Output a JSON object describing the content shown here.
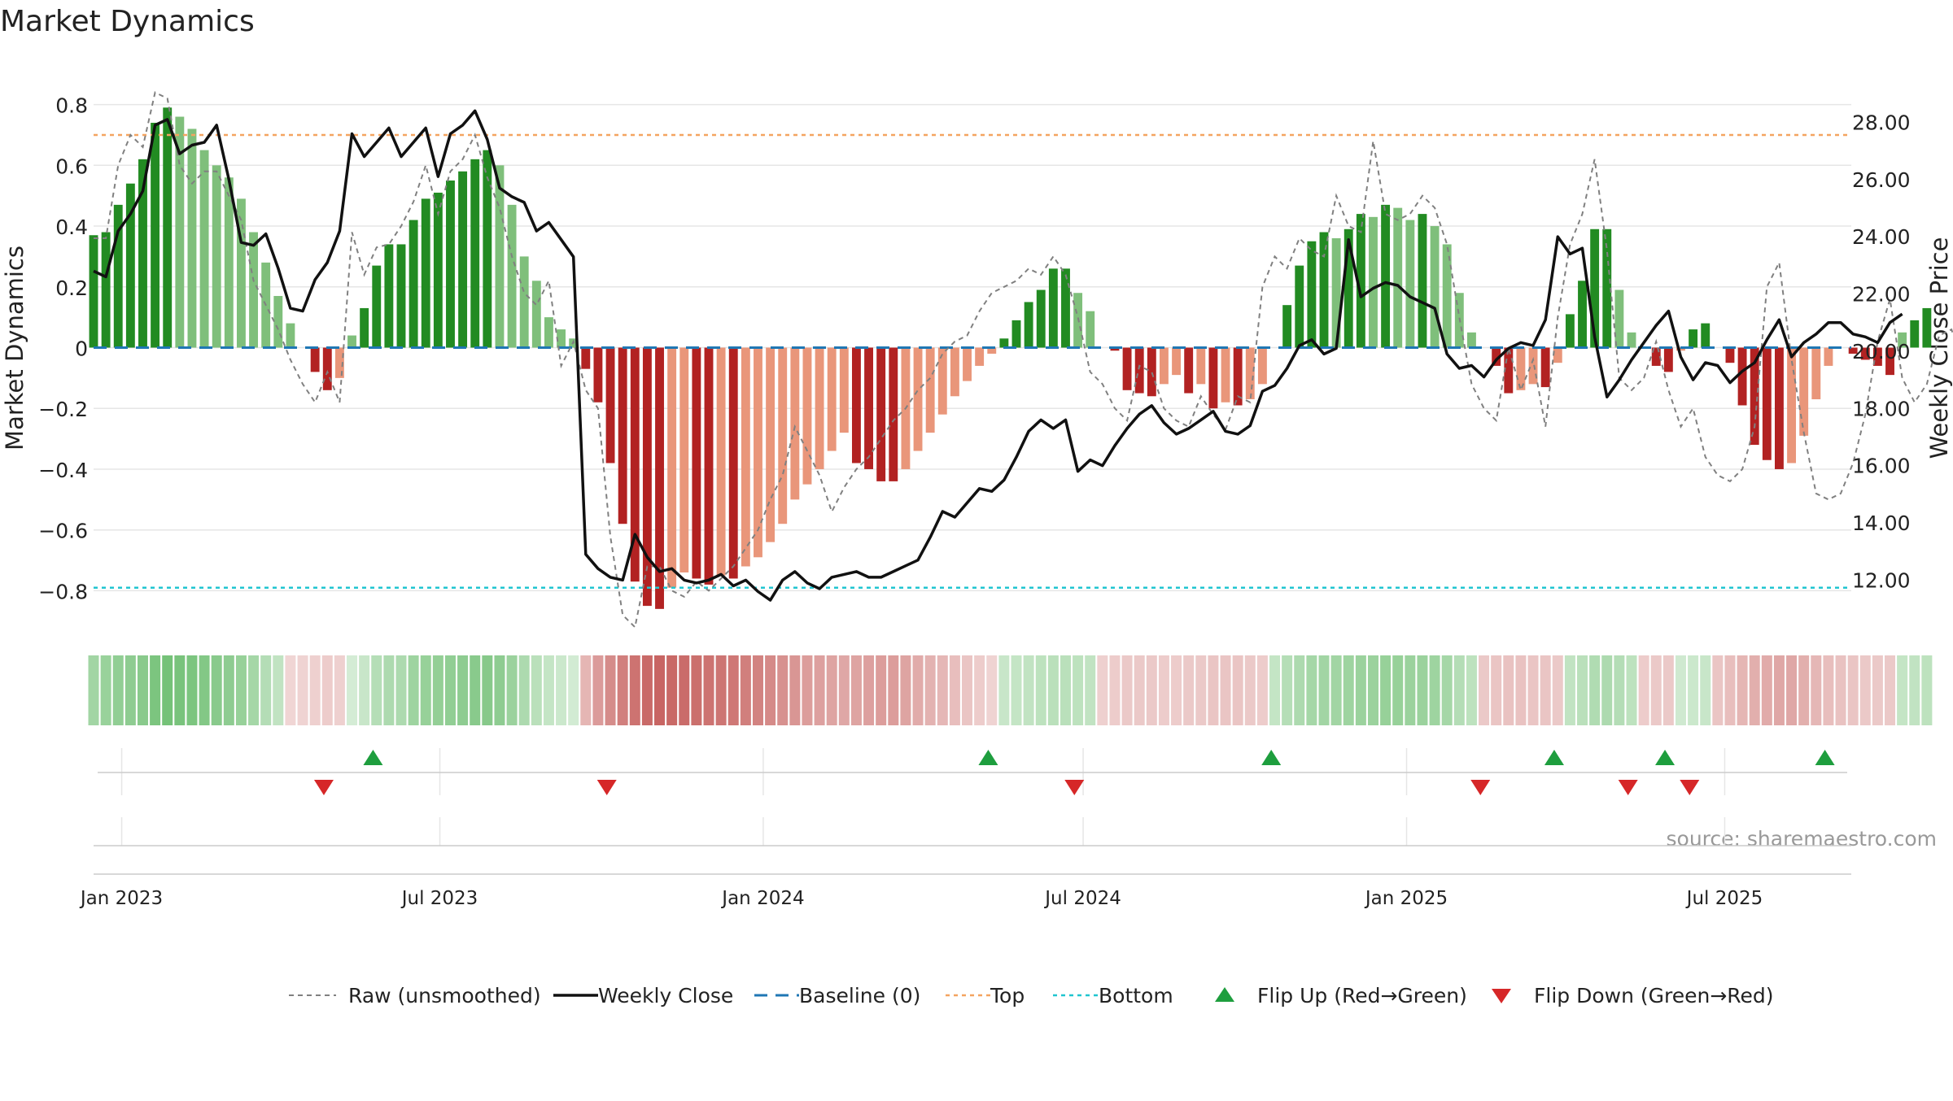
{
  "chart_data": {
    "type": "bar",
    "title": "Market Dynamics",
    "ylabel": "Market Dynamics",
    "y2label": "Weekly Close Price",
    "source": "source: sharemaestro.com",
    "ylim": [
      -0.93,
      0.93
    ],
    "y2lim": [
      10.25,
      30.0
    ],
    "yticks": [
      -0.8,
      -0.6,
      -0.4,
      -0.2,
      0,
      0.2,
      0.4,
      0.6,
      0.8
    ],
    "ytick_labels": [
      "−0.8",
      "−0.6",
      "−0.4",
      "−0.2",
      "0",
      "0.2",
      "0.4",
      "0.6",
      "0.8"
    ],
    "y2ticks": [
      12,
      14,
      16,
      18,
      20,
      22,
      24,
      26,
      28
    ],
    "y2tick_labels": [
      "12.00",
      "14.00",
      "16.00",
      "18.00",
      "20.00",
      "22.00",
      "24.00",
      "26.00",
      "28.00"
    ],
    "xlim": [
      "2022-12-16",
      "2025-09-11"
    ],
    "xticks": [
      "2023-01-01",
      "2023-07-01",
      "2024-01-01",
      "2024-07-01",
      "2025-01-01",
      "2025-07-01"
    ],
    "xtick_labels": [
      "Jan 2023",
      "Jul 2023",
      "Jan 2024",
      "Jul 2024",
      "Jan 2025",
      "Jul 2025"
    ],
    "grid": true,
    "legend_position": "bottom",
    "top_level": 0.7,
    "bottom_level": -0.79,
    "baseline": 0,
    "start_date": "2022-12-16",
    "bar_values": [
      0.37,
      0.38,
      0.47,
      0.54,
      0.62,
      0.74,
      0.79,
      0.76,
      0.72,
      0.65,
      0.6,
      0.56,
      0.49,
      0.38,
      0.28,
      0.17,
      0.08,
      0,
      -0.08,
      -0.14,
      -0.1,
      0.04,
      0.13,
      0.27,
      0.34,
      0.34,
      0.42,
      0.49,
      0.51,
      0.55,
      0.58,
      0.62,
      0.65,
      0.6,
      0.47,
      0.3,
      0.22,
      0.1,
      0.06,
      0.03,
      -0.07,
      -0.18,
      -0.38,
      -0.58,
      -0.77,
      -0.85,
      -0.86,
      -0.79,
      -0.74,
      -0.76,
      -0.78,
      -0.75,
      -0.76,
      -0.72,
      -0.69,
      -0.64,
      -0.58,
      -0.5,
      -0.45,
      -0.4,
      -0.34,
      -0.28,
      -0.38,
      -0.4,
      -0.44,
      -0.44,
      -0.4,
      -0.34,
      -0.28,
      -0.22,
      -0.16,
      -0.11,
      -0.06,
      -0.02,
      0.03,
      0.09,
      0.15,
      0.19,
      0.26,
      0.26,
      0.18,
      0.12,
      0,
      -0.01,
      -0.14,
      -0.15,
      -0.16,
      -0.12,
      -0.09,
      -0.15,
      -0.12,
      -0.2,
      -0.18,
      -0.19,
      -0.17,
      -0.12,
      0,
      0.14,
      0.27,
      0.35,
      0.38,
      0.36,
      0.39,
      0.44,
      0.43,
      0.47,
      0.46,
      0.42,
      0.44,
      0.4,
      0.34,
      0.18,
      0.05,
      0,
      -0.06,
      -0.15,
      -0.14,
      -0.12,
      -0.13,
      -0.05,
      0.11,
      0.22,
      0.39,
      0.39,
      0.19,
      0.05,
      0,
      -0.06,
      -0.08,
      -0.01,
      0.06,
      0.08,
      0,
      -0.05,
      -0.19,
      -0.32,
      -0.37,
      -0.4,
      -0.38,
      -0.29,
      -0.17,
      -0.06,
      0,
      -0.02,
      -0.04,
      -0.06,
      -0.09,
      0.05,
      0.09,
      0.13
    ],
    "raw_values": [
      0.36,
      0.36,
      0.6,
      0.7,
      0.66,
      0.84,
      0.82,
      0.6,
      0.54,
      0.58,
      0.58,
      0.5,
      0.42,
      0.22,
      0.14,
      0.06,
      -0.04,
      -0.12,
      -0.18,
      -0.08,
      -0.18,
      0.38,
      0.24,
      0.33,
      0.34,
      0.4,
      0.48,
      0.6,
      0.44,
      0.58,
      0.62,
      0.7,
      0.56,
      0.46,
      0.3,
      0.18,
      0.14,
      0.22,
      -0.06,
      0.02,
      -0.14,
      -0.2,
      -0.62,
      -0.88,
      -0.92,
      -0.72,
      -0.72,
      -0.8,
      -0.82,
      -0.77,
      -0.8,
      -0.76,
      -0.72,
      -0.66,
      -0.6,
      -0.5,
      -0.42,
      -0.26,
      -0.34,
      -0.42,
      -0.54,
      -0.46,
      -0.4,
      -0.36,
      -0.3,
      -0.24,
      -0.2,
      -0.14,
      -0.1,
      -0.02,
      0.02,
      0.04,
      0.12,
      0.18,
      0.2,
      0.22,
      0.26,
      0.24,
      0.3,
      0.24,
      0.1,
      -0.08,
      -0.12,
      -0.2,
      -0.24,
      -0.06,
      -0.08,
      -0.2,
      -0.24,
      -0.26,
      -0.16,
      -0.22,
      -0.27,
      -0.16,
      -0.18,
      0.2,
      0.3,
      0.26,
      0.36,
      0.32,
      0.3,
      0.5,
      0.4,
      0.38,
      0.68,
      0.44,
      0.42,
      0.44,
      0.5,
      0.46,
      0.34,
      0.1,
      -0.12,
      -0.2,
      -0.24,
      0,
      -0.14,
      -0.04,
      -0.26,
      0.1,
      0.34,
      0.44,
      0.62,
      0.32,
      -0.1,
      -0.14,
      -0.1,
      0.02,
      -0.14,
      -0.26,
      -0.2,
      -0.36,
      -0.42,
      -0.44,
      -0.4,
      -0.26,
      0.2,
      0.28,
      -0.04,
      -0.28,
      -0.48,
      -0.5,
      -0.48,
      -0.38,
      -0.22,
      0.02,
      0.16,
      -0.1,
      -0.18,
      -0.12,
      0.04,
      0.06,
      -0.06,
      0.2
    ],
    "close_values": [
      22.8,
      22.6,
      24.2,
      24.8,
      25.6,
      27.9,
      28.1,
      26.9,
      27.2,
      27.3,
      27.9,
      26.0,
      23.8,
      23.7,
      24.1,
      22.9,
      21.5,
      21.4,
      22.5,
      23.1,
      24.2,
      27.6,
      26.8,
      27.3,
      27.8,
      26.8,
      27.3,
      27.8,
      26.1,
      27.6,
      27.9,
      28.4,
      27.4,
      25.7,
      25.4,
      25.2,
      24.2,
      24.5,
      23.9,
      23.3,
      12.9,
      12.4,
      12.1,
      12.0,
      13.6,
      12.8,
      12.3,
      12.4,
      12.0,
      11.9,
      12.0,
      12.2,
      11.8,
      12.0,
      11.6,
      11.3,
      12.0,
      12.3,
      11.9,
      11.7,
      12.1,
      12.2,
      12.3,
      12.1,
      12.1,
      12.3,
      12.5,
      12.7,
      13.5,
      14.4,
      14.2,
      14.7,
      15.2,
      15.1,
      15.5,
      16.3,
      17.2,
      17.6,
      17.3,
      17.6,
      15.8,
      16.2,
      16.0,
      16.7,
      17.3,
      17.8,
      18.1,
      17.5,
      17.1,
      17.3,
      17.6,
      17.9,
      17.2,
      17.1,
      17.4,
      18.6,
      18.8,
      19.4,
      20.2,
      20.4,
      19.9,
      20.1,
      23.9,
      21.9,
      22.2,
      22.4,
      22.3,
      21.9,
      21.7,
      21.5,
      19.9,
      19.4,
      19.5,
      19.1,
      19.7,
      20.1,
      20.3,
      20.2,
      21.1,
      24.0,
      23.4,
      23.6,
      20.5,
      18.4,
      19.0,
      19.7,
      20.3,
      20.9,
      21.4,
      19.8,
      19.0,
      19.6,
      19.5,
      18.9,
      19.3,
      19.6,
      20.4,
      21.1,
      19.8,
      20.3,
      20.6,
      21.0,
      21.0,
      20.6,
      20.5,
      20.3,
      21.0,
      21.3
    ],
    "heat_values": [
      0.4,
      0.45,
      0.5,
      0.52,
      0.55,
      0.62,
      0.66,
      0.64,
      0.62,
      0.58,
      0.55,
      0.52,
      0.46,
      0.38,
      0.3,
      0.22,
      -0.1,
      -0.12,
      -0.14,
      -0.16,
      -0.14,
      0.1,
      0.18,
      0.28,
      0.34,
      0.34,
      0.42,
      0.46,
      0.48,
      0.5,
      0.52,
      0.55,
      0.56,
      0.52,
      0.44,
      0.34,
      0.26,
      0.2,
      0.16,
      0.12,
      -0.3,
      -0.45,
      -0.55,
      -0.62,
      -0.7,
      -0.75,
      -0.78,
      -0.76,
      -0.74,
      -0.72,
      -0.7,
      -0.68,
      -0.66,
      -0.62,
      -0.6,
      -0.56,
      -0.52,
      -0.48,
      -0.44,
      -0.42,
      -0.4,
      -0.38,
      -0.4,
      -0.42,
      -0.44,
      -0.44,
      -0.4,
      -0.36,
      -0.32,
      -0.28,
      -0.24,
      -0.2,
      -0.16,
      -0.12,
      0.18,
      0.2,
      0.22,
      0.24,
      0.26,
      0.26,
      0.24,
      0.22,
      -0.14,
      -0.16,
      -0.18,
      -0.18,
      -0.18,
      -0.16,
      -0.16,
      -0.18,
      -0.18,
      -0.2,
      -0.2,
      -0.2,
      -0.18,
      -0.16,
      0.2,
      0.28,
      0.34,
      0.38,
      0.4,
      0.4,
      0.42,
      0.44,
      0.44,
      0.46,
      0.46,
      0.44,
      0.44,
      0.42,
      0.38,
      0.3,
      0.24,
      -0.18,
      -0.2,
      -0.22,
      -0.22,
      -0.2,
      -0.2,
      -0.18,
      0.22,
      0.26,
      0.32,
      0.34,
      0.3,
      0.24,
      -0.16,
      -0.18,
      -0.18,
      0.14,
      0.16,
      0.18,
      -0.2,
      -0.24,
      -0.3,
      -0.34,
      -0.36,
      -0.38,
      -0.38,
      -0.34,
      -0.28,
      -0.24,
      -0.22,
      -0.2,
      -0.18,
      -0.18,
      -0.18,
      0.2,
      0.22,
      0.24
    ],
    "flip_up_dates": [
      "2023-05-24",
      "2024-05-08",
      "2024-10-16",
      "2025-03-26",
      "2025-05-28",
      "2025-08-27"
    ],
    "flip_down_dates": [
      "2023-04-26",
      "2023-10-04",
      "2024-06-26",
      "2025-02-12",
      "2025-05-07",
      "2025-06-11"
    ],
    "legend": [
      {
        "label": "Raw (unsmoothed)",
        "style": "raw"
      },
      {
        "label": "Weekly Close",
        "style": "close"
      },
      {
        "label": "Baseline (0)",
        "style": "baseline"
      },
      {
        "label": "Top",
        "style": "top"
      },
      {
        "label": "Bottom",
        "style": "bottom"
      },
      {
        "label": "Flip Up (Red→Green)",
        "style": "flipup"
      },
      {
        "label": "Flip Down (Green→Red)",
        "style": "flipdown"
      }
    ],
    "colors": {
      "green_strong": "#228b22",
      "green_light": "#7fbf7b",
      "red_strong": "#b22222",
      "red_light": "#e9967a",
      "raw_line": "#808080",
      "close_line": "#111111",
      "baseline": "#1f77b4",
      "top": "#f4a460",
      "bottom": "#20c5d0",
      "flip_up": "#1e9e3e",
      "flip_down": "#d62728",
      "grid": "#e6e6e6"
    }
  }
}
